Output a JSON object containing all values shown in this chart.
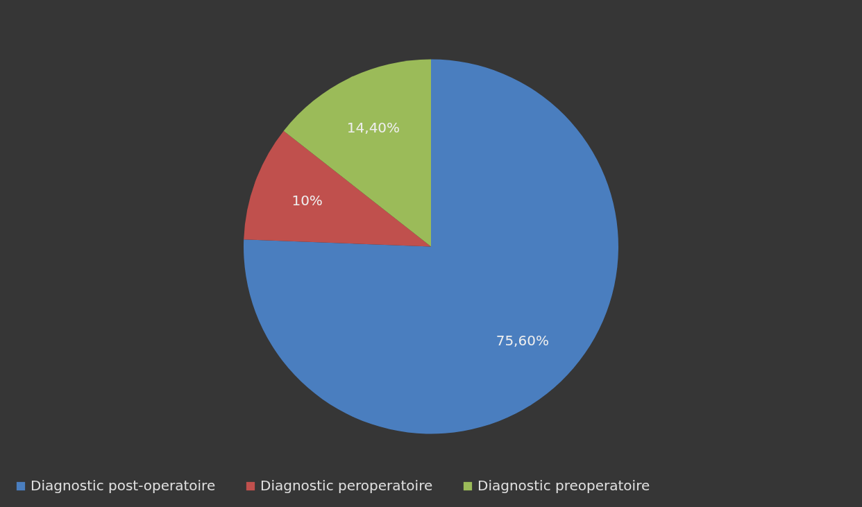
{
  "chart_data": {
    "type": "pie",
    "categories": [
      "Diagnostic post-operatoire",
      "Diagnostic peroperatoire",
      "Diagnostic preoperatoire"
    ],
    "values": [
      75.6,
      10,
      14.4
    ],
    "colors": [
      "#4a7ebf",
      "#c0504d",
      "#9bbb59"
    ],
    "value_labels": [
      "75,60%",
      "10%",
      "14,40%"
    ],
    "legend": "bottom"
  }
}
